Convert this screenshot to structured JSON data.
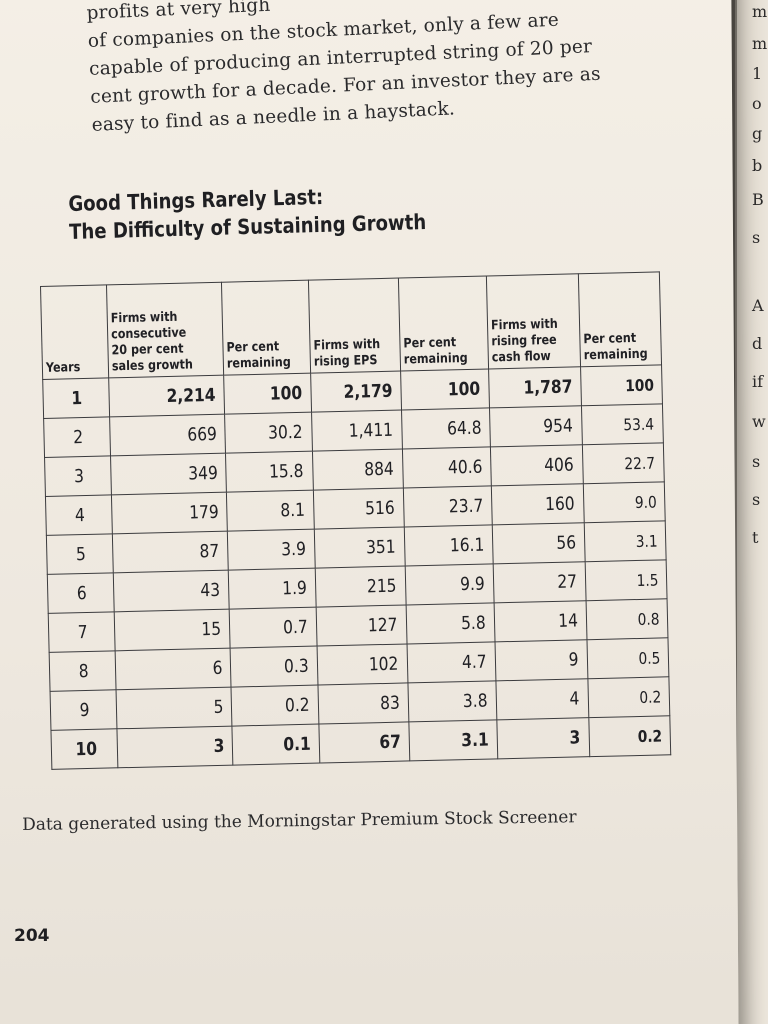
{
  "intro_lines": [
    "profits at very high",
    "of companies on the stock market, only a few are",
    "capable of producing an interrupted string of 20 per",
    "cent growth for a decade. For an investor they are as",
    "easy to find as a needle in a haystack."
  ],
  "table_title": {
    "line1": "Good Things Rarely Last:",
    "line2": "The Difficulty of Sustaining Growth"
  },
  "table": {
    "headers": [
      "Years",
      "Firms with consecutive 20 per cent sales growth",
      "Per cent remaining",
      "Firms with rising EPS",
      "Per cent remaining",
      "Firms with rising free cash flow",
      "Per cent remaining"
    ],
    "rows": [
      [
        "1",
        "2,214",
        "100",
        "2,179",
        "100",
        "1,787",
        "100"
      ],
      [
        "2",
        "669",
        "30.2",
        "1,411",
        "64.8",
        "954",
        "53.4"
      ],
      [
        "3",
        "349",
        "15.8",
        "884",
        "40.6",
        "406",
        "22.7"
      ],
      [
        "4",
        "179",
        "8.1",
        "516",
        "23.7",
        "160",
        "9.0"
      ],
      [
        "5",
        "87",
        "3.9",
        "351",
        "16.1",
        "56",
        "3.1"
      ],
      [
        "6",
        "43",
        "1.9",
        "215",
        "9.9",
        "27",
        "1.5"
      ],
      [
        "7",
        "15",
        "0.7",
        "127",
        "5.8",
        "14",
        "0.8"
      ],
      [
        "8",
        "6",
        "0.3",
        "102",
        "4.7",
        "9",
        "0.5"
      ],
      [
        "9",
        "5",
        "0.2",
        "83",
        "3.8",
        "4",
        "0.2"
      ],
      [
        "10",
        "3",
        "0.1",
        "67",
        "3.1",
        "3",
        "0.2"
      ]
    ]
  },
  "caption": "Data generated using the Morningstar Premium Stock Screener",
  "page_number": "204",
  "right_page_letters": [
    "m",
    "m",
    "1",
    "o",
    "g",
    "b",
    "B",
    "s",
    "A",
    "d",
    "if",
    "w",
    "s",
    "s",
    "t"
  ]
}
